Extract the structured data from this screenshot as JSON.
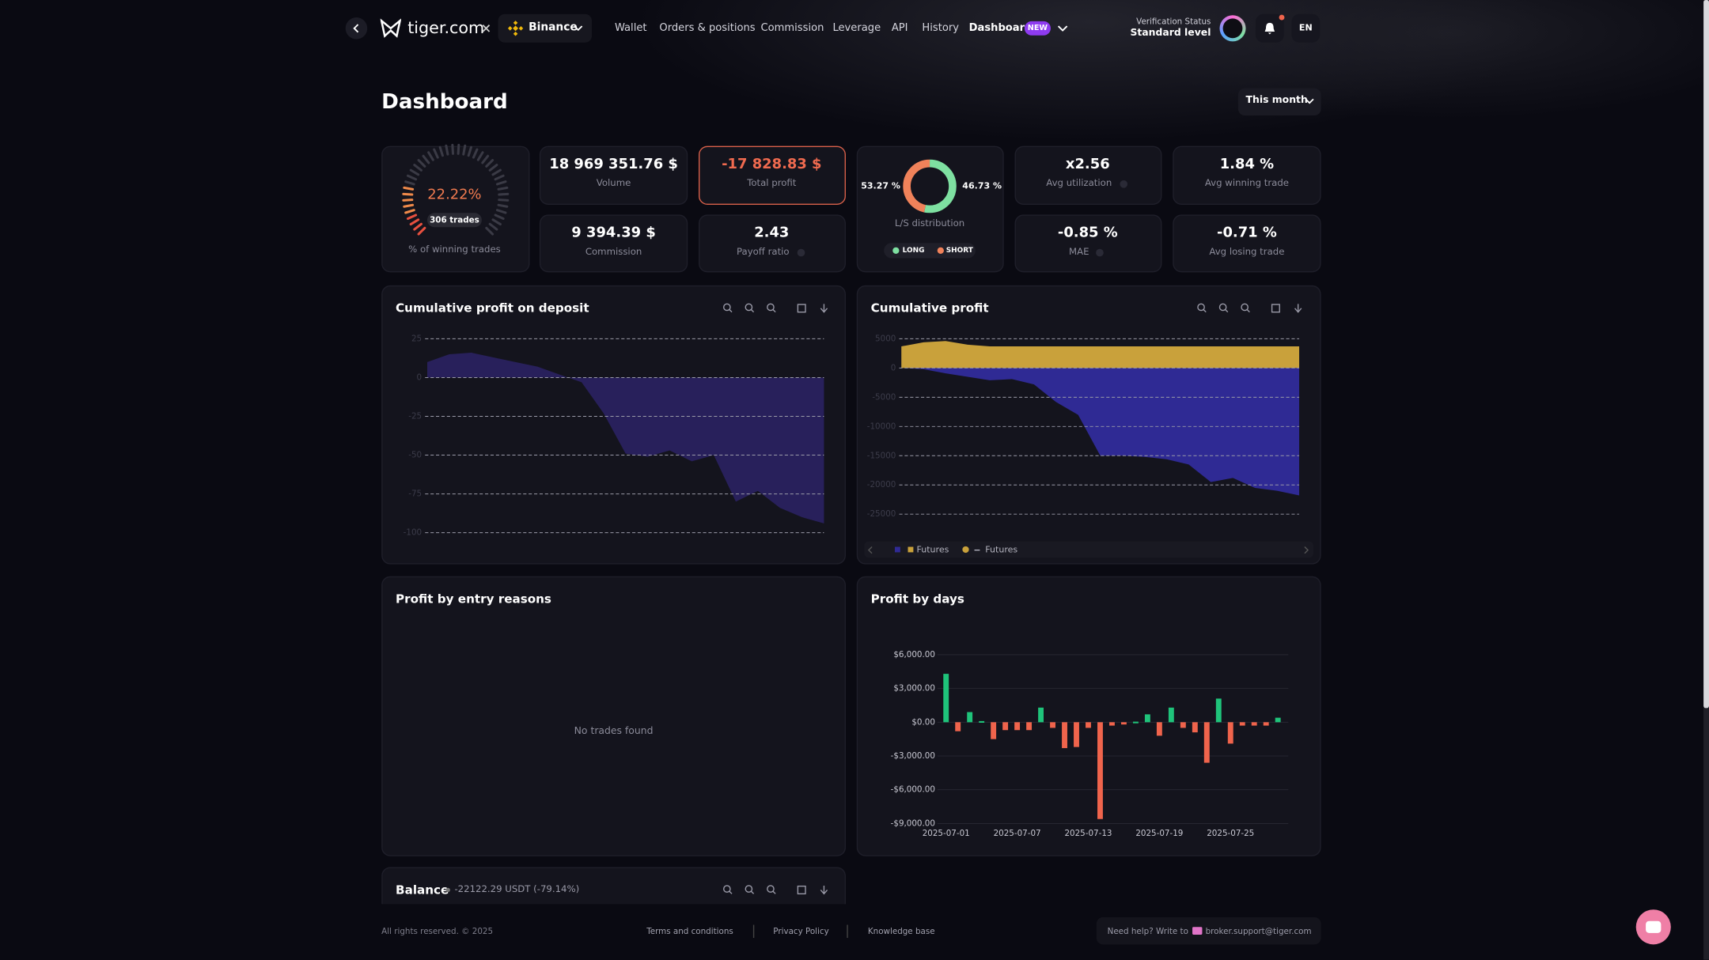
{
  "nav": {
    "brand": "tiger.com",
    "exchange": "Binance",
    "links": [
      "Wallet",
      "Orders & positions",
      "Commission",
      "Leverage",
      "API",
      "History",
      "Dashboard"
    ],
    "badge": "NEW",
    "verification_label": "Verification Status",
    "verification_level": "Standard level",
    "language": "EN"
  },
  "header": {
    "title": "Dashboard",
    "period": "This month"
  },
  "stats": {
    "winning": {
      "rate": {
        "value": 22.22,
        "label": "22.22%"
      },
      "trades": "306 trades",
      "label": "% of winning trades"
    },
    "volume": {
      "value": "18 969 351.76 $",
      "label": "Volume"
    },
    "total_profit": {
      "value": "-17 828.83 $",
      "label": "Total profit"
    },
    "commission": {
      "value": "9 394.39 $",
      "label": "Commission"
    },
    "payoff": {
      "value": "2.43",
      "label": "Payoff ratio"
    },
    "ls": {
      "long": {
        "value": 53.27,
        "label": "53.27 %"
      },
      "short": {
        "value": 46.73,
        "label": "46.73 %"
      },
      "label": "L/S distribution",
      "legend": [
        "LONG",
        "SHORT"
      ],
      "colors": [
        "#7ee0a1",
        "#f0825a"
      ]
    },
    "utilization": {
      "value": "x2.56",
      "label": "Avg utilization"
    },
    "avg_winning": {
      "value": "1.84 %",
      "label": "Avg winning trade"
    },
    "mae": {
      "value": "-0.85 %",
      "label": "MAE"
    },
    "avg_losing": {
      "value": "-0.71 %",
      "label": "Avg losing trade"
    }
  },
  "chart_data": [
    {
      "type": "area",
      "title": "Cumulative profit on deposit",
      "color": "#2a2163",
      "grid": true,
      "values": [
        10,
        15,
        16,
        13,
        10,
        7,
        2,
        -3,
        -23,
        -49,
        -51,
        -47,
        -54,
        -50,
        -80,
        -73,
        -84,
        -90,
        -94
      ],
      "ylim": [
        -100,
        25
      ],
      "yticks": [
        25,
        0,
        -25,
        -50,
        -75,
        -100
      ]
    },
    {
      "type": "stacked_area",
      "title": "Cumulative profit",
      "grid": true,
      "series": [
        {
          "name": "Futures",
          "color": "#2f2a94",
          "values": [
            0,
            -200,
            -900,
            -1500,
            -2100,
            -1900,
            -2800,
            -5800,
            -8000,
            -15000,
            -15000,
            -15200,
            -15600,
            -16500,
            -19500,
            -18800,
            -20500,
            -21000,
            -21800
          ]
        },
        {
          "name": "Futures",
          "color": "#c9a13b",
          "values": [
            3700,
            4400,
            4600,
            4000,
            3700,
            3700,
            3700,
            3700,
            3700,
            3700,
            3700,
            3700,
            3700,
            3700,
            3700,
            3700,
            3700,
            3700,
            3700
          ]
        }
      ],
      "ylim": [
        -25000,
        5000
      ],
      "yticks": [
        5000,
        0,
        -5000,
        -10000,
        -15000,
        -20000,
        -25000
      ]
    },
    {
      "type": "bar",
      "title": "Profit by days",
      "positive_color": "#1fc37a",
      "negative_color": "#f0644c",
      "grid": true,
      "categories": [
        "2025-07-01",
        null,
        null,
        null,
        null,
        null,
        "2025-07-07",
        null,
        null,
        null,
        null,
        null,
        "2025-07-13",
        null,
        null,
        null,
        null,
        null,
        "2025-07-19",
        null,
        null,
        null,
        null,
        null,
        "2025-07-25",
        null,
        null,
        null,
        null
      ],
      "values": [
        4300,
        -800,
        900,
        100,
        -1500,
        -700,
        -700,
        -700,
        1300,
        -500,
        -2300,
        -2200,
        -500,
        -8600,
        -300,
        -200,
        50,
        700,
        -1200,
        1300,
        -500,
        -900,
        -3600,
        2100,
        -1900,
        -300,
        -300,
        -300,
        400
      ],
      "ylim": [
        -9000,
        6000
      ],
      "yticks": [
        {
          "value": 6000,
          "label": "$6,000.00"
        },
        {
          "value": 3000,
          "label": "$3,000.00"
        },
        {
          "value": 0,
          "label": "$0.00"
        },
        {
          "value": -3000,
          "label": "-$3,000.00"
        },
        {
          "value": -6000,
          "label": "-$6,000.00"
        },
        {
          "value": -9000,
          "label": "-$9,000.00"
        }
      ]
    }
  ],
  "entry_reasons": {
    "title": "Profit by entry reasons",
    "empty": "No trades found"
  },
  "balance": {
    "title": "Balance",
    "summary": "-22122.29 USDT (-79.14%)"
  },
  "footer": {
    "copyright": "All rights reserved. © 2025",
    "links": [
      "Terms and conditions",
      "Privacy Policy",
      "Knowledge base"
    ],
    "help": "Need help? Write to",
    "email": "broker.support@tiger.com"
  }
}
